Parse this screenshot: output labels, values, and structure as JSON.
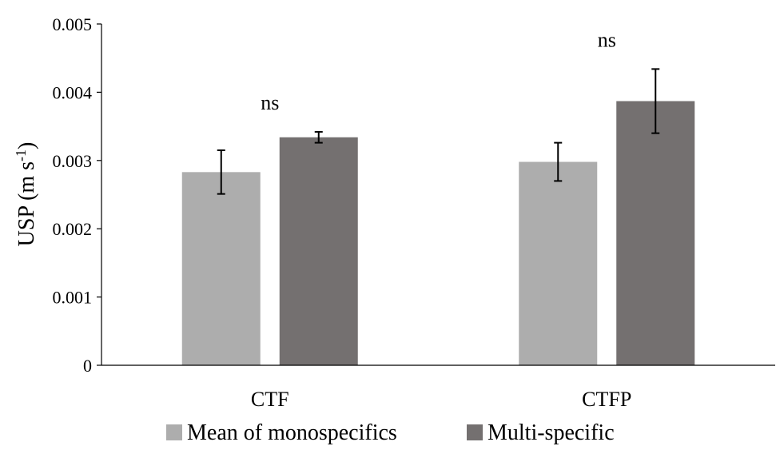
{
  "chart_data": {
    "type": "bar",
    "categories": [
      "CTF",
      "CTFP"
    ],
    "series": [
      {
        "name": "Mean of monospecifics",
        "values": [
          0.00283,
          0.00298
        ],
        "errors": [
          0.00032,
          0.00028
        ],
        "color": "#adadad"
      },
      {
        "name": "Multi-specific",
        "values": [
          0.00334,
          0.00387
        ],
        "errors": [
          8e-05,
          0.00047
        ],
        "color": "#747070"
      }
    ],
    "annotations": [
      "ns",
      "ns"
    ],
    "ylabel_main": "USP (m s",
    "ylabel_sup": "-1",
    "ylabel_close": ")",
    "ylim": [
      0,
      0.005
    ],
    "yticks": [
      "0",
      "0.001",
      "0.002",
      "0.003",
      "0.004",
      "0.005"
    ],
    "ytick_values": [
      0,
      0.001,
      0.002,
      0.003,
      0.004,
      0.005
    ],
    "legend_position": "bottom",
    "grid": false
  }
}
